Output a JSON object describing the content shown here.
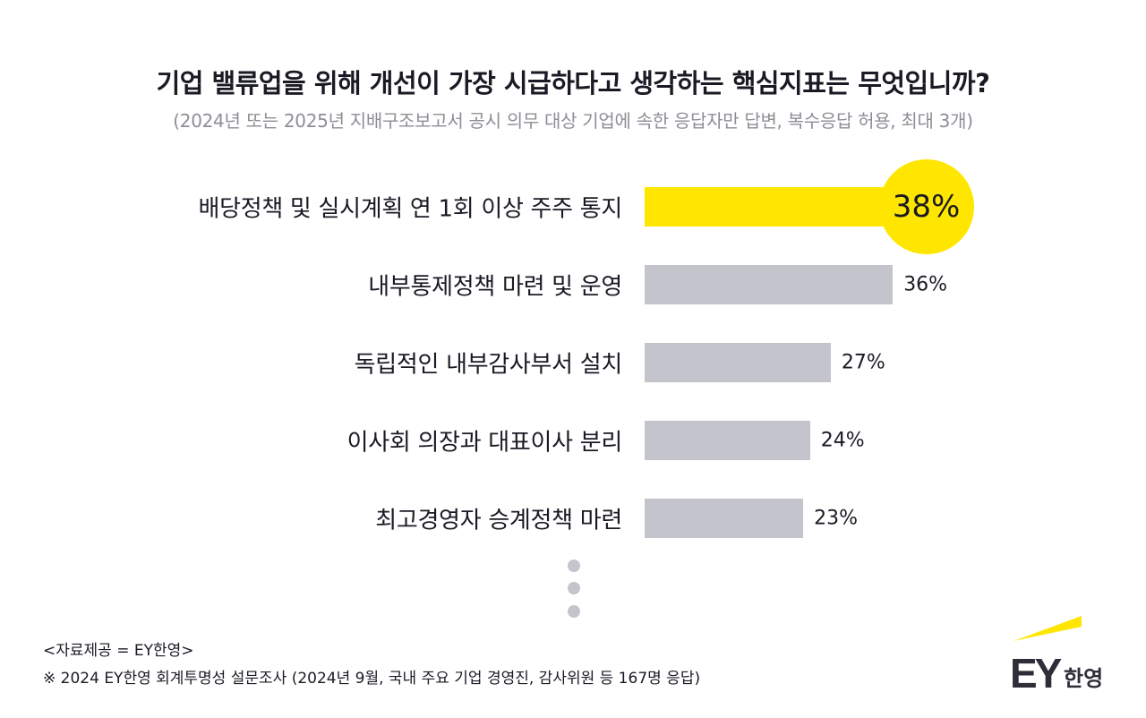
{
  "chart_data": {
    "type": "bar",
    "orientation": "horizontal",
    "title": "기업 밸류업을 위해 개선이 가장 시급하다고 생각하는 핵심지표는 무엇입니까?",
    "subtitle": "(2024년 또는 2025년 지배구조보고서 공시 의무 대상 기업에 속한 응답자만 답변, 복수응답 허용, 최대 3개)",
    "categories": [
      "배당정책 및 실시계획 연 1회 이상 주주 통지",
      "내부통제정책 마련 및 운영",
      "독립적인 내부감사부서 설치",
      "이사회 의장과 대표이사 분리",
      "최고경영자 승계정책 마련"
    ],
    "values": [
      38,
      36,
      27,
      24,
      23
    ],
    "value_labels": [
      "38%",
      "36%",
      "27%",
      "24%",
      "23%"
    ],
    "unit": "%",
    "highlight_index": 0,
    "colors": {
      "highlight": "#ffe600",
      "default": "#c4c4cd"
    },
    "truncated": true,
    "grid": false
  },
  "footer": {
    "source": "<자료제공 = EY한영>",
    "note": "※ 2024 EY한영 회계투명성 설문조사 (2024년 9월, 국내 주요 기업 경영진, 감사위원 등 167명 응답)"
  },
  "logo": {
    "text": "EY한영",
    "color_dark": "#2e2e38",
    "color_accent": "#ffe600"
  }
}
